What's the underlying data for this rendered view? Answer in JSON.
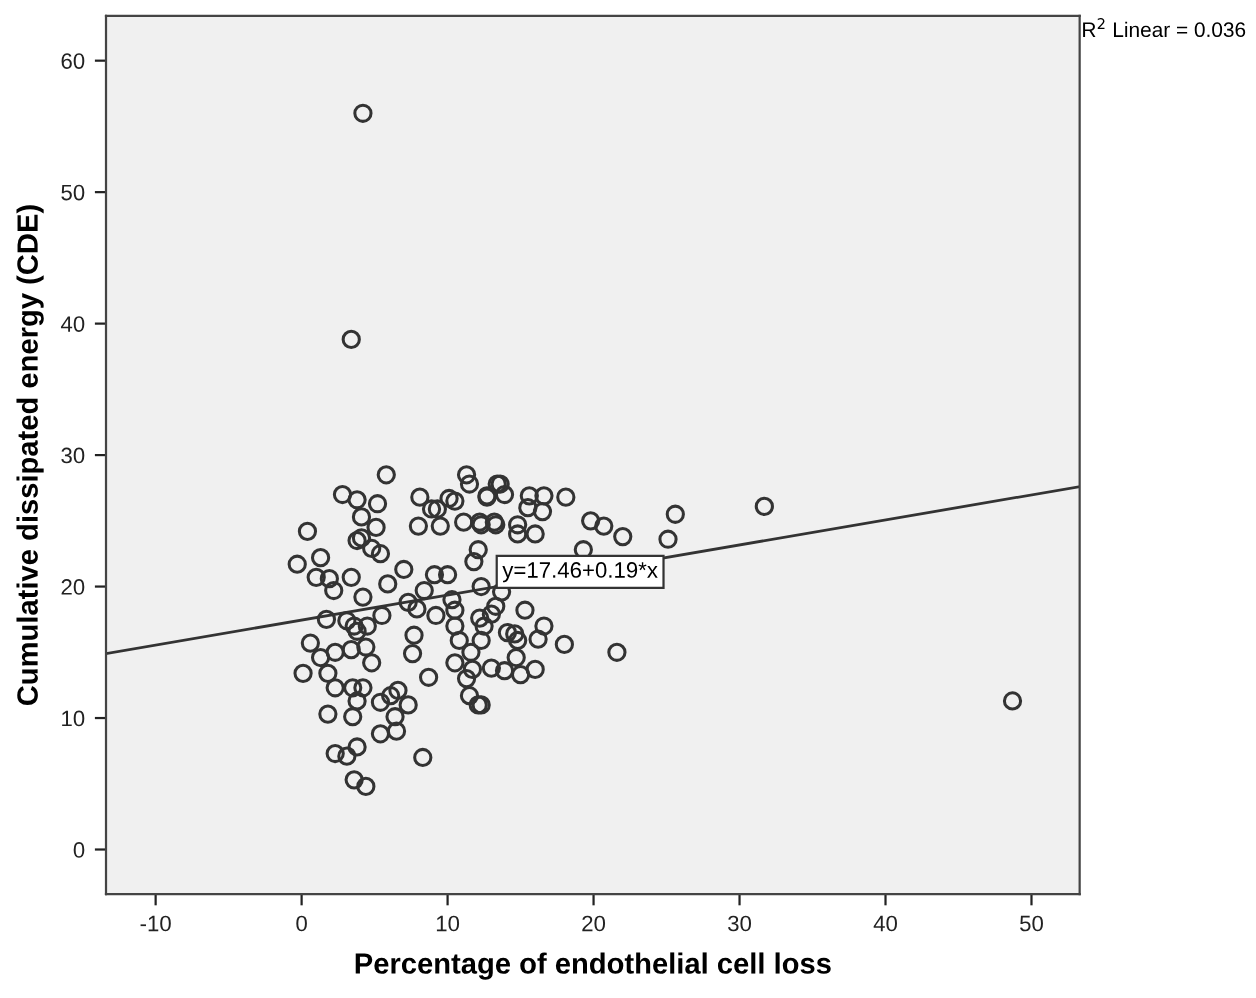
{
  "chart_data": {
    "type": "scatter",
    "xlabel": "Percentage of endothelial cell loss",
    "ylabel": "Cumulative dissipated energy (CDE)",
    "xlim": [
      -13.4,
      53.3
    ],
    "ylim": [
      -3.4,
      63.4
    ],
    "xticks": [
      -10,
      0,
      10,
      20,
      30,
      40,
      50
    ],
    "yticks": [
      0,
      10,
      20,
      30,
      40,
      50,
      60
    ],
    "grid": false,
    "annotations": [
      "R$^{2}$ Linear = 0.036",
      "y=17.46+0.19*x"
    ],
    "series": [
      {
        "color": "#333333",
        "marker": "circle",
        "x": [
          4.2,
          3.4,
          5.8,
          2.8,
          3.8,
          5.2,
          8.1,
          11.3,
          11.5,
          10.1,
          10.5,
          8.9,
          9.3,
          12.7,
          13.4,
          4.1,
          5.1,
          8.0,
          9.5,
          11.1,
          12.2,
          13.2,
          0.4,
          3.8,
          4.1,
          4.8,
          5.4,
          1.3,
          -0.3,
          12.1,
          11.8,
          1.0,
          1.9,
          2.2,
          3.4,
          7.0,
          5.9,
          9.1,
          10.0,
          8.4,
          4.2,
          7.3,
          7.9,
          10.3,
          1.7,
          3.1,
          3.6,
          3.8,
          4.5,
          5.5,
          9.2,
          10.5,
          10.5,
          12.2,
          12.5,
          0.6,
          1.3,
          1.8,
          0.1,
          2.3,
          3.4,
          4.4,
          4.8,
          7.7,
          7.6,
          10.8,
          11.6,
          12.3,
          10.5,
          11.3,
          11.7,
          13.0,
          8.7,
          2.3,
          3.5,
          4.2,
          3.8,
          3.5,
          5.4,
          6.1,
          6.6,
          7.3,
          11.5,
          12.1,
          1.8,
          6.4,
          5.4,
          6.5,
          2.3,
          3.1,
          3.8,
          8.3,
          3.6,
          4.4,
          13.6,
          12.7,
          13.9,
          15.6,
          16.6,
          18.1,
          15.5,
          16.5,
          12.3,
          13.3,
          14.8,
          19.8,
          20.7,
          25.6,
          14.8,
          16.0,
          22.0,
          25.1,
          19.3,
          12.3,
          13.7,
          13.3,
          13.0,
          15.3,
          16.6,
          14.1,
          14.6,
          16.2,
          14.8,
          18.0,
          21.6,
          14.7,
          13.9,
          15.0,
          16.0,
          12.3,
          31.7,
          48.7
        ],
        "values": [
          56.0,
          38.8,
          28.5,
          27.0,
          26.6,
          26.3,
          26.8,
          28.5,
          27.8,
          26.7,
          26.5,
          25.9,
          25.9,
          26.8,
          27.8,
          25.3,
          24.5,
          24.6,
          24.6,
          24.9,
          24.9,
          24.9,
          24.2,
          23.5,
          23.7,
          22.9,
          22.5,
          22.2,
          21.7,
          22.8,
          21.9,
          20.7,
          20.6,
          19.7,
          20.7,
          21.3,
          20.2,
          20.9,
          20.9,
          19.7,
          19.2,
          18.8,
          18.3,
          19.0,
          17.5,
          17.4,
          17.0,
          16.6,
          17.0,
          17.8,
          17.8,
          18.2,
          17.0,
          17.6,
          17.0,
          15.7,
          14.6,
          13.4,
          13.4,
          15.0,
          15.2,
          15.4,
          14.2,
          16.3,
          14.9,
          15.9,
          15.0,
          15.9,
          14.2,
          13.0,
          13.7,
          13.8,
          13.1,
          12.3,
          12.3,
          12.3,
          11.3,
          10.1,
          11.2,
          11.7,
          12.1,
          11.0,
          11.7,
          11.0,
          10.3,
          10.1,
          8.8,
          9.0,
          7.3,
          7.1,
          7.8,
          7.0,
          5.3,
          4.8,
          27.8,
          26.9,
          27.0,
          26.9,
          26.9,
          26.8,
          26.0,
          25.7,
          24.7,
          24.7,
          24.7,
          25.0,
          24.6,
          25.5,
          24.0,
          24.0,
          23.8,
          23.6,
          22.8,
          20.0,
          19.6,
          18.5,
          17.9,
          18.2,
          17.0,
          16.5,
          16.4,
          16.0,
          15.9,
          15.6,
          15.0,
          14.6,
          13.6,
          13.3,
          13.7,
          11.0,
          26.1,
          11.3
        ]
      },
      {
        "type": "line",
        "color": "#333333",
        "marker": "none",
        "line_style": "solid",
        "x": [
          -13.4,
          53.3
        ],
        "values": [
          14.9,
          27.6
        ]
      }
    ]
  }
}
